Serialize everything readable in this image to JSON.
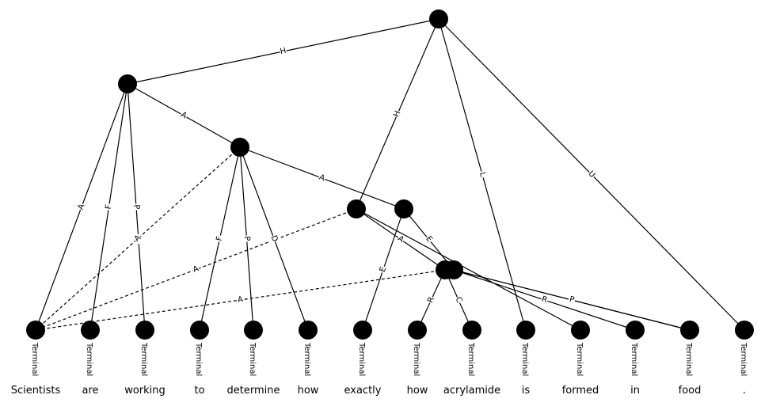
{
  "diagram": {
    "title": "",
    "terminal_label": "Terminal",
    "tokens": [
      "Scientists",
      "are",
      "working",
      "to",
      "determine",
      "how",
      "exactly",
      "how",
      "acrylamide",
      "is",
      "formed",
      "in",
      "food",
      "."
    ],
    "nodes": [
      "root",
      "n1",
      "n2",
      "n3",
      "n4",
      "n5a",
      "n5b"
    ],
    "edges": [
      {
        "from": "root",
        "to": "n1",
        "label": "H",
        "remote": false
      },
      {
        "from": "root",
        "to": "n3",
        "label": "H",
        "remote": false
      },
      {
        "from": "root",
        "to": "t9",
        "label": "L",
        "remote": false
      },
      {
        "from": "root",
        "to": "t13",
        "label": "U",
        "remote": false
      },
      {
        "from": "n1",
        "to": "n2",
        "label": "A",
        "remote": false
      },
      {
        "from": "n1",
        "to": "t0",
        "label": "A",
        "remote": false
      },
      {
        "from": "n1",
        "to": "t1",
        "label": "F",
        "remote": false
      },
      {
        "from": "n1",
        "to": "t2",
        "label": "P",
        "remote": false
      },
      {
        "from": "n2",
        "to": "n4",
        "label": "A",
        "remote": false
      },
      {
        "from": "n2",
        "to": "t0",
        "label": "A",
        "remote": true
      },
      {
        "from": "n2",
        "to": "t3",
        "label": "F",
        "remote": false
      },
      {
        "from": "n2",
        "to": "t4",
        "label": "P",
        "remote": false
      },
      {
        "from": "n2",
        "to": "t5",
        "label": "D",
        "remote": false
      },
      {
        "from": "n3",
        "to": "t0",
        "label": "A",
        "remote": true
      },
      {
        "from": "n3",
        "to": "n5a",
        "label": "A",
        "remote": false
      },
      {
        "from": "n3",
        "to": "t10",
        "label": "",
        "remote": false
      },
      {
        "from": "n4",
        "to": "n5b",
        "label": "E",
        "remote": false
      },
      {
        "from": "n4",
        "to": "t6",
        "label": "E",
        "remote": false
      },
      {
        "from": "n5a",
        "to": "t0",
        "label": "A",
        "remote": true
      },
      {
        "from": "n5a",
        "to": "t7",
        "label": "R",
        "remote": false
      },
      {
        "from": "n5a",
        "to": "t8",
        "label": "C",
        "remote": false
      },
      {
        "from": "n5b",
        "to": "t11",
        "label": "R",
        "remote": false
      },
      {
        "from": "n5b",
        "to": "t12",
        "label": "P",
        "remote": false
      },
      {
        "from": "n5b",
        "to": "n5b_p",
        "label": "P",
        "remote": false
      }
    ]
  }
}
